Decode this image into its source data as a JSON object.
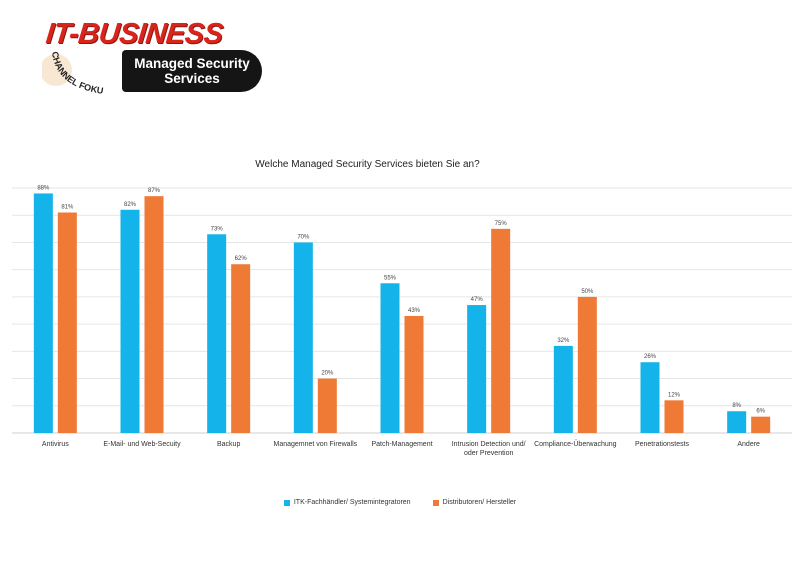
{
  "logo": {
    "main": "IT-BUSINESS",
    "curve": "CHANNEL FOKUS",
    "badge_line1": "Managed Security",
    "badge_line2": "Services"
  },
  "colors": {
    "series1": "#14b4ea",
    "series2": "#ef7a35",
    "grid": "#e6e6e6",
    "logo_red": "#d9241c"
  },
  "chart_data": {
    "type": "bar",
    "title": "Welche Managed Security Services bieten Sie an?",
    "categories": [
      "Antivirus",
      "E-Mail- und Web-Secuity",
      "Backup",
      "Managemnet von Firewalls",
      "Patch-Management",
      "Intrusion Detection und/ oder Prevention",
      "Compliance-Überwachung",
      "Penetrationstests",
      "Andere"
    ],
    "series": [
      {
        "name": "ITK-Fachhändler/ Systemintegratoren",
        "values": [
          88,
          82,
          73,
          70,
          55,
          47,
          32,
          26,
          8
        ]
      },
      {
        "name": "Distributoren/ Hersteller",
        "values": [
          81,
          87,
          62,
          20,
          43,
          75,
          50,
          12,
          6
        ]
      }
    ],
    "value_suffix": "%",
    "ylim": [
      0,
      90
    ],
    "grid": true,
    "legend_position": "bottom"
  }
}
